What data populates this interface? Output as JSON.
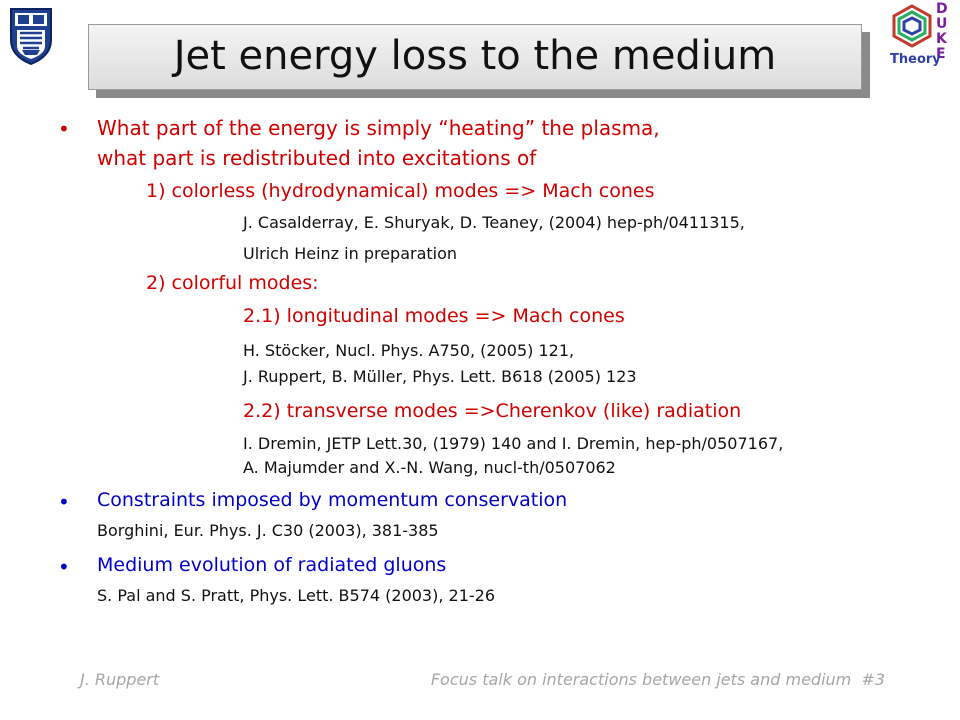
{
  "title": "Jet energy loss to the medium",
  "logos": {
    "left": "shield-logo",
    "right_letters": [
      "D",
      "U",
      "K",
      "E"
    ],
    "right_caption": "Theory"
  },
  "bullets": {
    "b1": {
      "line1": "What part of the energy is simply “heating” the plasma,",
      "line2": "what part is redistributed into excitations of",
      "item1": "1) colorless (hydrodynamical) modes => Mach cones",
      "ref1a": "J. Casalderray, E. Shuryak, D. Teaney, (2004) hep-ph/0411315,",
      "ref1b": "Ulrich Heinz in preparation",
      "item2": "2) colorful modes:",
      "item21": "2.1) longitudinal modes => Mach cones",
      "ref21a": "H. Stöcker, Nucl. Phys. A750, (2005) 121,",
      "ref21b": "J. Ruppert, B. Müller, Phys. Lett. B618 (2005) 123",
      "item22": "2.2) transverse modes =>Cherenkov (like) radiation",
      "ref22a": "I. Dremin, JETP Lett.30, (1979) 140 and I. Dremin, hep-ph/0507167,",
      "ref22b": "A. Majumder and X.-N. Wang, nucl-th/0507062"
    },
    "b2": {
      "text": "Constraints imposed by momentum conservation",
      "ref": "Borghini, Eur. Phys. J. C30 (2003), 381-385"
    },
    "b3": {
      "text": "Medium evolution of radiated gluons",
      "ref": "S. Pal and S. Pratt, Phys. Lett. B574 (2003), 21-26"
    },
    "marker": "•"
  },
  "footer": {
    "author": "J. Ruppert",
    "talk": "Focus talk on interactions between jets and medium  #3"
  },
  "colors": {
    "bullet1": "#d00000",
    "bullets23": "#0000c8",
    "references": "#111111",
    "footer": "#a6a6a6"
  }
}
